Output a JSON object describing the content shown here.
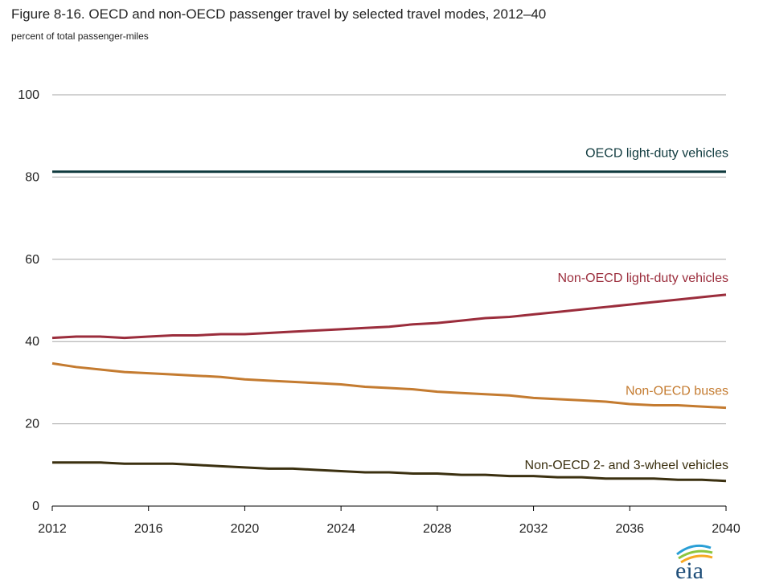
{
  "chart_data": {
    "type": "line",
    "title": "Figure 8-16. OECD and non-OECD passenger travel by selected travel modes, 2012–40",
    "ylabel": "percent of total passenger-miles",
    "xlabel": "",
    "xlim": [
      2012,
      2040
    ],
    "ylim": [
      0,
      100
    ],
    "x_ticks": [
      "2012",
      "2016",
      "2020",
      "2024",
      "2028",
      "2032",
      "2036",
      "2040"
    ],
    "y_ticks": [
      "0",
      "20",
      "40",
      "60",
      "80",
      "100"
    ],
    "grid": "horizontal",
    "x": [
      2012,
      2013,
      2014,
      2015,
      2016,
      2017,
      2018,
      2019,
      2020,
      2021,
      2022,
      2023,
      2024,
      2025,
      2026,
      2027,
      2028,
      2029,
      2030,
      2031,
      2032,
      2033,
      2034,
      2035,
      2036,
      2037,
      2038,
      2039,
      2040
    ],
    "series": [
      {
        "name": "OECD light-duty vehicles",
        "color": "#0f3a3e",
        "values": [
          81.3,
          81.3,
          81.3,
          81.3,
          81.3,
          81.3,
          81.3,
          81.3,
          81.3,
          81.3,
          81.3,
          81.3,
          81.3,
          81.3,
          81.3,
          81.3,
          81.3,
          81.3,
          81.3,
          81.3,
          81.3,
          81.3,
          81.3,
          81.3,
          81.3,
          81.3,
          81.3,
          81.3,
          81.3
        ]
      },
      {
        "name": "Non-OECD light-duty vehicles",
        "color": "#9b2d3c",
        "values": [
          40.9,
          41.2,
          41.2,
          40.9,
          41.2,
          41.5,
          41.5,
          41.8,
          41.8,
          42.1,
          42.4,
          42.7,
          43.0,
          43.3,
          43.6,
          44.2,
          44.5,
          45.1,
          45.7,
          46.0,
          46.6,
          47.2,
          47.8,
          48.4,
          49.0,
          49.6,
          50.2,
          50.8,
          51.4
        ]
      },
      {
        "name": "Non-OECD buses",
        "color": "#c47b30",
        "values": [
          34.7,
          33.8,
          33.2,
          32.6,
          32.3,
          32.0,
          31.7,
          31.4,
          30.8,
          30.5,
          30.2,
          29.9,
          29.6,
          29.0,
          28.7,
          28.4,
          27.8,
          27.5,
          27.2,
          26.9,
          26.3,
          26.0,
          25.7,
          25.4,
          24.8,
          24.5,
          24.5,
          24.2,
          23.9
        ]
      },
      {
        "name": "Non-OECD 2- and 3-wheel vehicles",
        "color": "#3b3010",
        "values": [
          10.6,
          10.6,
          10.6,
          10.3,
          10.3,
          10.3,
          10.0,
          9.7,
          9.4,
          9.1,
          9.1,
          8.8,
          8.5,
          8.2,
          8.2,
          7.9,
          7.9,
          7.6,
          7.6,
          7.3,
          7.3,
          7.0,
          7.0,
          6.7,
          6.7,
          6.7,
          6.4,
          6.4,
          6.1
        ]
      }
    ]
  }
}
